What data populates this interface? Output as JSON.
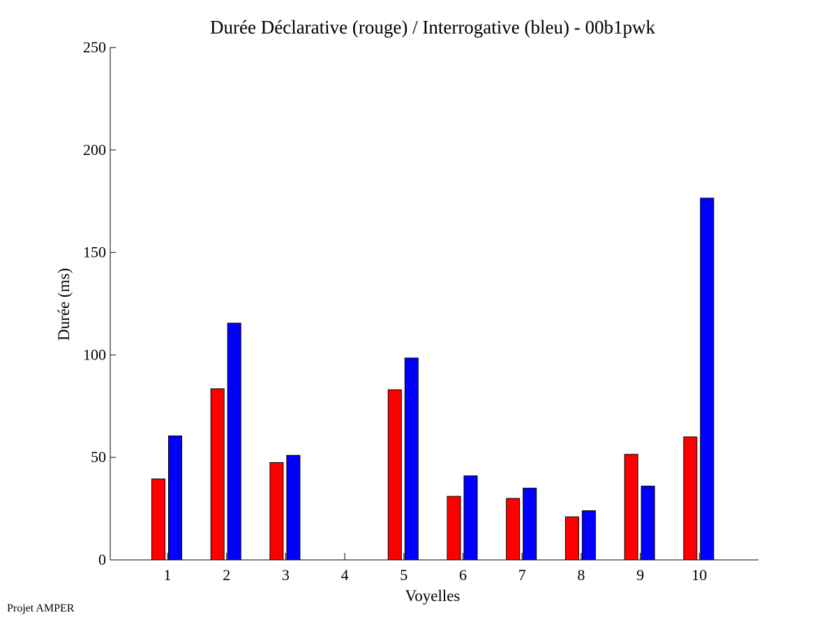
{
  "chart_data": {
    "type": "bar",
    "title": "Durée Déclarative (rouge) / Interrogative (bleu) - 00b1pwk",
    "xlabel": "Voyelles",
    "ylabel": "Durée (ms)",
    "ylim": [
      0,
      250
    ],
    "yticks": [
      0,
      50,
      100,
      150,
      200,
      250
    ],
    "categories": [
      "1",
      "2",
      "3",
      "4",
      "5",
      "6",
      "7",
      "8",
      "9",
      "10"
    ],
    "series": [
      {
        "name": "",
        "color": "#ff0000",
        "values": [
          39.5,
          83.5,
          47.5,
          0,
          83,
          31,
          30,
          21,
          51.5,
          60
        ]
      },
      {
        "name": "",
        "color": "#0000ff",
        "values": [
          60.5,
          115.5,
          51,
          0,
          98.5,
          41,
          35,
          24,
          36,
          176.5
        ]
      }
    ],
    "grid": false,
    "legend": "none"
  },
  "footer": {
    "credit": "Projet AMPER"
  }
}
